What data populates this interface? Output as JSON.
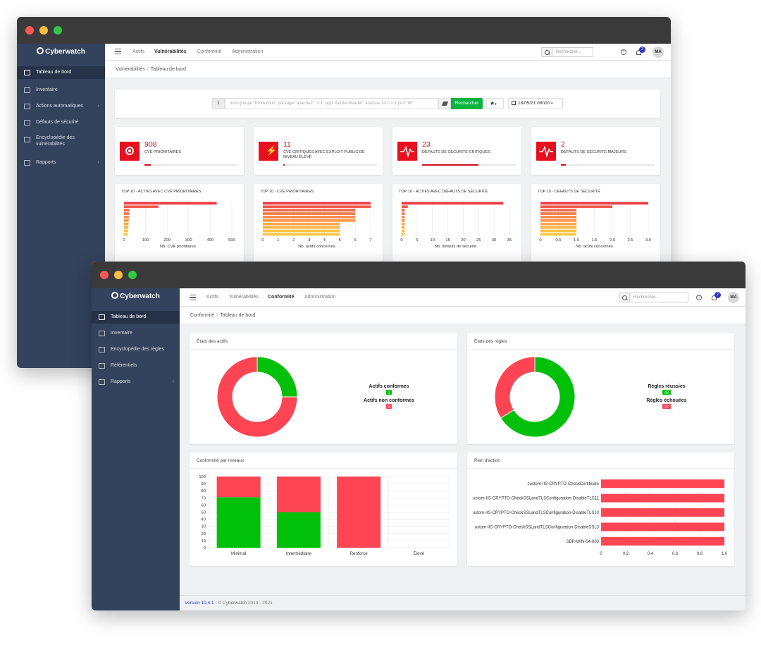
{
  "window1": {
    "brand": "Cyberwatch",
    "sidebar": [
      {
        "label": "Tableau de bord",
        "active": true,
        "icon": "home-icon"
      },
      {
        "label": "Inventaire",
        "icon": "list-icon"
      },
      {
        "label": "Actions automatiques",
        "icon": "calendar-icon",
        "chevron": true
      },
      {
        "label": "Défauts de sécurité",
        "icon": "pulse-icon"
      },
      {
        "label": "Encyclopédie des",
        "label2": "vulnérabilités",
        "icon": "book-icon"
      },
      {
        "label": "Rapports",
        "icon": "bar-chart-icon",
        "chevron": true
      }
    ],
    "nav": [
      "Actifs",
      "Vulnérabilités",
      "Conformité",
      "Administration"
    ],
    "nav_active": "Vulnérabilités",
    "search_placeholder": "Rechercher...",
    "notif_count": "2",
    "avatar": "MA",
    "breadcrumb": [
      "Vulnérabilités",
      "Tableau de bord"
    ],
    "filter": {
      "placeholder": "nom groupe:\"Production\" package:\"apache2\":\"2.1\" app:\"Adobe Reader\" adresse:10.0.0.1 port:\"80\"",
      "button": "Rechercher",
      "date": "18/05/21 08h00"
    },
    "kpis": [
      {
        "value": "908",
        "label": "CVE PRIORITAIRES",
        "progress": 0.07,
        "icon": "target-icon"
      },
      {
        "value": "11",
        "label": "CVE CRITIQUES AVEC EXPLOIT PUBLIC DE NIVEAU ÉLEVÉ",
        "progress": 0.01,
        "icon": "bolt-icon"
      },
      {
        "value": "23",
        "label": "DÉFAUTS DE SÉCURITÉ CRITIQUES",
        "progress": 0.6,
        "icon": "pulse-icon"
      },
      {
        "value": "2",
        "label": "DÉFAUTS DE SÉCURITÉ MAJEURS",
        "progress": 0.05,
        "icon": "pulse-icon"
      }
    ],
    "colors": {
      "red": "#e8101e",
      "orange": "#f5a623"
    }
  },
  "window2": {
    "brand": "Cyberwatch",
    "sidebar": [
      {
        "label": "Tableau de bord",
        "active": true,
        "icon": "home-icon"
      },
      {
        "label": "Inventaire",
        "icon": "list-icon"
      },
      {
        "label": "Encyclopédie des règles",
        "icon": "book-icon"
      },
      {
        "label": "Référentiels",
        "icon": "folder-icon"
      },
      {
        "label": "Rapports",
        "icon": "bar-chart-icon",
        "chevron": true
      }
    ],
    "nav": [
      "Actifs",
      "Vulnérabilités",
      "Conformité",
      "Administration"
    ],
    "nav_active": "Conformité",
    "search_placeholder": "Rechercher...",
    "notif_count": "2",
    "avatar": "MA",
    "breadcrumb": [
      "Conformité",
      "Tableau de bord"
    ],
    "footer": {
      "version": "Version 10.4.1",
      "copyright": " - © Cyberwatch 2014 - 2021"
    }
  },
  "chart_data": [
    {
      "type": "bar",
      "orientation": "horizontal",
      "title": "TOP 10 - ACTIFS AVEC CVE PRIORITAIRES",
      "xlabel": "Nb. CVE prioritaires",
      "xticks": [
        "0",
        "100",
        "200",
        "300",
        "400",
        "500"
      ],
      "xlim": [
        0,
        500
      ],
      "values": [
        430,
        160,
        25,
        24,
        23,
        22,
        21,
        20,
        19,
        18
      ]
    },
    {
      "type": "bar",
      "orientation": "horizontal",
      "title": "TOP 10 - CVE PRIORITAIRES",
      "xlabel": "Nb. actifs concernés",
      "xticks": [
        "0",
        "1",
        "2",
        "3",
        "4",
        "5",
        "6",
        "7"
      ],
      "xlim": [
        0,
        7
      ],
      "values": [
        7,
        7,
        6,
        6,
        6,
        6,
        5,
        5,
        5,
        5
      ]
    },
    {
      "type": "bar",
      "orientation": "horizontal",
      "title": "TOP 10 - ACTIFS AVEC DÉFAUTS DE SÉCURITÉ",
      "xlabel": "Nb. défauts de sécurité",
      "xticks": [
        "0",
        "5",
        "10",
        "15",
        "20",
        "25",
        "30",
        "35"
      ],
      "xlim": [
        0,
        35
      ],
      "values": [
        33,
        2,
        1,
        1,
        1,
        1,
        1,
        1,
        1,
        1
      ]
    },
    {
      "type": "bar",
      "orientation": "horizontal",
      "title": "TOP 10 - DÉFAUTS DE SÉCURITÉ",
      "xlabel": "Nb. actifs concernés",
      "xticks": [
        "0",
        "0.5",
        "1.0",
        "1.5",
        "2.0",
        "2.5",
        "3.0"
      ],
      "xlim": [
        0,
        3
      ],
      "values": [
        3,
        2,
        1,
        1,
        1,
        1,
        1,
        1,
        1,
        1
      ]
    },
    {
      "type": "pie",
      "donut": true,
      "title": "États des actifs",
      "series": [
        {
          "name": "Actifs conformes",
          "value": 1,
          "count": "1",
          "color": "#00c00a"
        },
        {
          "name": "Actifs non conformes",
          "value": 3,
          "count": "3",
          "color": "#ff4553"
        }
      ]
    },
    {
      "type": "pie",
      "donut": true,
      "title": "États des règles",
      "series": [
        {
          "name": "Règles réussies",
          "value": 43,
          "count": "43",
          "color": "#00c00a"
        },
        {
          "name": "Règles échouées",
          "value": 22,
          "count": "22",
          "color": "#ff4553"
        }
      ]
    },
    {
      "type": "bar",
      "stacked": true,
      "title": "Conformité par niveaux",
      "categories": [
        "Minimal",
        "Intermédiaire",
        "Renforcé",
        "Élevé"
      ],
      "ylim": [
        0,
        100
      ],
      "yticks": [
        "0",
        "10",
        "20",
        "30",
        "40",
        "50",
        "60",
        "70",
        "80",
        "90",
        "100"
      ],
      "series": [
        {
          "values": [
            71,
            50,
            0,
            0
          ],
          "color": "#00c00a"
        },
        {
          "values": [
            29,
            50,
            100,
            0
          ],
          "color": "#ff4553"
        }
      ]
    },
    {
      "type": "bar",
      "orientation": "horizontal",
      "title": "Plan d'action",
      "categories": [
        "custom-IIS-CRYPTO-CheckCertificate",
        "ustom-IIS-CRYPTO-CheckSSLandTLSConfiguration-DisableTLS11",
        "ustom-IIS-CRYPTO-CheckSSLandTLSConfiguration-DisableTLS10",
        "ustom-IIS-CRYPTO-CheckSSLandTLSConfiguration-DisableSSL3",
        "SBP-WIN-04-003"
      ],
      "xlim": [
        0,
        1
      ],
      "xticks": [
        "0",
        "0.2",
        "0.4",
        "0.6",
        "0.8",
        "1.0"
      ],
      "values": [
        1,
        1,
        1,
        1,
        1
      ],
      "color": "#ff4553"
    }
  ]
}
